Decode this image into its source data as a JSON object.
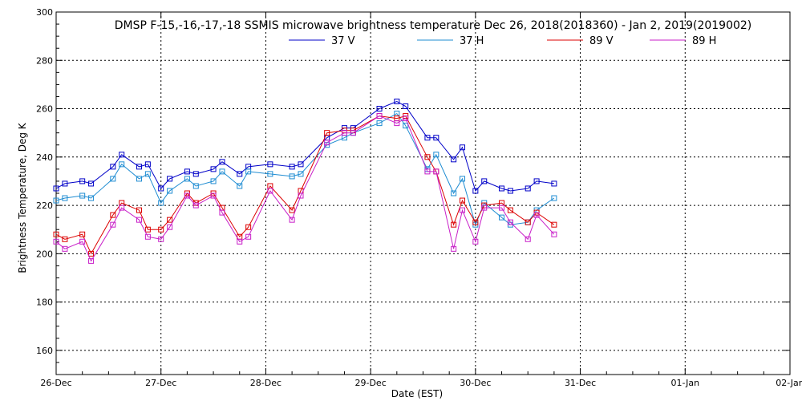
{
  "chart_data": {
    "type": "line",
    "title": "DMSP F-15,-16,-17,-18 SSMIS microwave brightness temperature Dec 26, 2018(2018360) - Jan  2, 2019(2019002)",
    "xlabel": "Date (EST)",
    "ylabel": "Brightness Temperature, Deg K",
    "x_ticks": [
      "26-Dec",
      "27-Dec",
      "28-Dec",
      "29-Dec",
      "30-Dec",
      "31-Dec",
      "01-Jan",
      "02-Jan"
    ],
    "xlim": [
      "2018-12-26T00:00",
      "2019-01-02T00:00"
    ],
    "ylim": [
      150,
      300
    ],
    "y_ticks": [
      160,
      180,
      200,
      220,
      240,
      260,
      280,
      300
    ],
    "grid": true,
    "legend_position": "top",
    "marker": "square",
    "series": [
      {
        "name": "37 V",
        "color": "#0000c8",
        "points": [
          [
            "2018-12-26T00:00",
            227
          ],
          [
            "2018-12-26T02:00",
            229
          ],
          [
            "2018-12-26T06:00",
            230
          ],
          [
            "2018-12-26T08:00",
            229
          ],
          [
            "2018-12-26T13:00",
            236
          ],
          [
            "2018-12-26T15:00",
            241
          ],
          [
            "2018-12-26T19:00",
            236
          ],
          [
            "2018-12-26T21:00",
            237
          ],
          [
            "2018-12-27T00:00",
            227
          ],
          [
            "2018-12-27T02:00",
            231
          ],
          [
            "2018-12-27T06:00",
            234
          ],
          [
            "2018-12-27T08:00",
            233
          ],
          [
            "2018-12-27T12:00",
            235
          ],
          [
            "2018-12-27T14:00",
            238
          ],
          [
            "2018-12-27T18:00",
            233
          ],
          [
            "2018-12-27T20:00",
            236
          ],
          [
            "2018-12-28T01:00",
            237
          ],
          [
            "2018-12-28T06:00",
            236
          ],
          [
            "2018-12-28T08:00",
            237
          ],
          [
            "2018-12-28T14:00",
            248
          ],
          [
            "2018-12-28T18:00",
            252
          ],
          [
            "2018-12-28T20:00",
            252
          ],
          [
            "2018-12-29T02:00",
            260
          ],
          [
            "2018-12-29T06:00",
            263
          ],
          [
            "2018-12-29T08:00",
            261
          ],
          [
            "2018-12-29T13:00",
            248
          ],
          [
            "2018-12-29T15:00",
            248
          ],
          [
            "2018-12-29T19:00",
            239
          ],
          [
            "2018-12-29T21:00",
            244
          ],
          [
            "2018-12-30T00:00",
            226
          ],
          [
            "2018-12-30T02:00",
            230
          ],
          [
            "2018-12-30T06:00",
            227
          ],
          [
            "2018-12-30T08:00",
            226
          ],
          [
            "2018-12-30T12:00",
            227
          ],
          [
            "2018-12-30T14:00",
            230
          ],
          [
            "2018-12-30T18:00",
            229
          ]
        ]
      },
      {
        "name": "37 H",
        "color": "#1e8cd2",
        "points": [
          [
            "2018-12-26T00:00",
            222
          ],
          [
            "2018-12-26T02:00",
            223
          ],
          [
            "2018-12-26T06:00",
            224
          ],
          [
            "2018-12-26T08:00",
            223
          ],
          [
            "2018-12-26T13:00",
            231
          ],
          [
            "2018-12-26T15:00",
            237
          ],
          [
            "2018-12-26T19:00",
            231
          ],
          [
            "2018-12-26T21:00",
            233
          ],
          [
            "2018-12-27T00:00",
            221
          ],
          [
            "2018-12-27T02:00",
            226
          ],
          [
            "2018-12-27T06:00",
            231
          ],
          [
            "2018-12-27T08:00",
            228
          ],
          [
            "2018-12-27T12:00",
            230
          ],
          [
            "2018-12-27T14:00",
            234
          ],
          [
            "2018-12-27T18:00",
            228
          ],
          [
            "2018-12-27T20:00",
            234
          ],
          [
            "2018-12-28T01:00",
            233
          ],
          [
            "2018-12-28T06:00",
            232
          ],
          [
            "2018-12-28T08:00",
            233
          ],
          [
            "2018-12-28T14:00",
            245
          ],
          [
            "2018-12-28T18:00",
            248
          ],
          [
            "2018-12-28T20:00",
            250
          ],
          [
            "2018-12-29T02:00",
            254
          ],
          [
            "2018-12-29T06:00",
            258
          ],
          [
            "2018-12-29T08:00",
            253
          ],
          [
            "2018-12-29T13:00",
            235
          ],
          [
            "2018-12-29T15:00",
            241
          ],
          [
            "2018-12-29T19:00",
            225
          ],
          [
            "2018-12-29T21:00",
            231
          ],
          [
            "2018-12-30T00:00",
            212
          ],
          [
            "2018-12-30T02:00",
            221
          ],
          [
            "2018-12-30T06:00",
            215
          ],
          [
            "2018-12-30T08:00",
            212
          ],
          [
            "2018-12-30T12:00",
            213
          ],
          [
            "2018-12-30T14:00",
            218
          ],
          [
            "2018-12-30T18:00",
            223
          ]
        ]
      },
      {
        "name": "89 V",
        "color": "#dc0000",
        "points": [
          [
            "2018-12-26T00:00",
            208
          ],
          [
            "2018-12-26T02:00",
            206
          ],
          [
            "2018-12-26T06:00",
            208
          ],
          [
            "2018-12-26T08:00",
            200
          ],
          [
            "2018-12-26T13:00",
            216
          ],
          [
            "2018-12-26T15:00",
            221
          ],
          [
            "2018-12-26T19:00",
            218
          ],
          [
            "2018-12-26T21:00",
            210
          ],
          [
            "2018-12-27T00:00",
            210
          ],
          [
            "2018-12-27T02:00",
            214
          ],
          [
            "2018-12-27T06:00",
            225
          ],
          [
            "2018-12-27T08:00",
            221
          ],
          [
            "2018-12-27T12:00",
            225
          ],
          [
            "2018-12-27T14:00",
            219
          ],
          [
            "2018-12-27T18:00",
            207
          ],
          [
            "2018-12-27T20:00",
            211
          ],
          [
            "2018-12-28T01:00",
            228
          ],
          [
            "2018-12-28T06:00",
            218
          ],
          [
            "2018-12-28T08:00",
            226
          ],
          [
            "2018-12-28T14:00",
            250
          ],
          [
            "2018-12-28T18:00",
            251
          ],
          [
            "2018-12-28T20:00",
            251
          ],
          [
            "2018-12-29T02:00",
            257
          ],
          [
            "2018-12-29T06:00",
            256
          ],
          [
            "2018-12-29T08:00",
            257
          ],
          [
            "2018-12-29T13:00",
            240
          ],
          [
            "2018-12-29T15:00",
            234
          ],
          [
            "2018-12-29T19:00",
            212
          ],
          [
            "2018-12-29T21:00",
            222
          ],
          [
            "2018-12-30T00:00",
            213
          ],
          [
            "2018-12-30T02:00",
            220
          ],
          [
            "2018-12-30T06:00",
            221
          ],
          [
            "2018-12-30T08:00",
            218
          ],
          [
            "2018-12-30T12:00",
            213
          ],
          [
            "2018-12-30T14:00",
            217
          ],
          [
            "2018-12-30T18:00",
            212
          ]
        ]
      },
      {
        "name": "89 H",
        "color": "#c81ec8",
        "points": [
          [
            "2018-12-26T00:00",
            205
          ],
          [
            "2018-12-26T02:00",
            202
          ],
          [
            "2018-12-26T06:00",
            205
          ],
          [
            "2018-12-26T08:00",
            197
          ],
          [
            "2018-12-26T13:00",
            212
          ],
          [
            "2018-12-26T15:00",
            219
          ],
          [
            "2018-12-26T19:00",
            214
          ],
          [
            "2018-12-26T21:00",
            207
          ],
          [
            "2018-12-27T00:00",
            206
          ],
          [
            "2018-12-27T02:00",
            211
          ],
          [
            "2018-12-27T06:00",
            224
          ],
          [
            "2018-12-27T08:00",
            220
          ],
          [
            "2018-12-27T12:00",
            224
          ],
          [
            "2018-12-27T14:00",
            217
          ],
          [
            "2018-12-27T18:00",
            205
          ],
          [
            "2018-12-27T20:00",
            207
          ],
          [
            "2018-12-28T01:00",
            226
          ],
          [
            "2018-12-28T06:00",
            214
          ],
          [
            "2018-12-28T08:00",
            224
          ],
          [
            "2018-12-28T14:00",
            246
          ],
          [
            "2018-12-28T18:00",
            250
          ],
          [
            "2018-12-28T20:00",
            250
          ],
          [
            "2018-12-29T02:00",
            257
          ],
          [
            "2018-12-29T06:00",
            254
          ],
          [
            "2018-12-29T08:00",
            256
          ],
          [
            "2018-12-29T13:00",
            234
          ],
          [
            "2018-12-29T15:00",
            234
          ],
          [
            "2018-12-29T19:00",
            202
          ],
          [
            "2018-12-29T21:00",
            218
          ],
          [
            "2018-12-30T00:00",
            205
          ],
          [
            "2018-12-30T02:00",
            219
          ],
          [
            "2018-12-30T06:00",
            219
          ],
          [
            "2018-12-30T08:00",
            213
          ],
          [
            "2018-12-30T12:00",
            206
          ],
          [
            "2018-12-30T14:00",
            216
          ],
          [
            "2018-12-30T18:00",
            208
          ]
        ]
      }
    ]
  }
}
